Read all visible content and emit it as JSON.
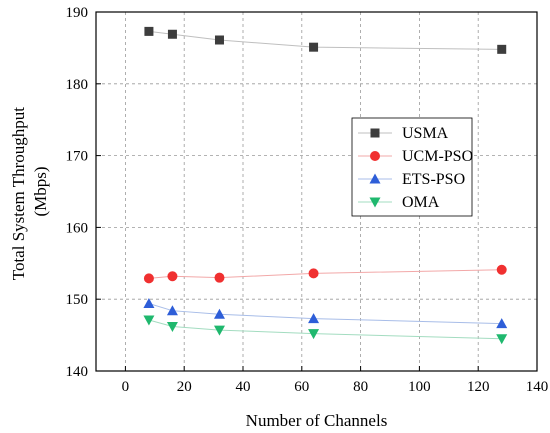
{
  "chart_data": {
    "type": "scatter",
    "xlabel": "Number of Channels",
    "ylabel_lines": [
      "Total System Throughput",
      "(Mbps)"
    ],
    "xlim": [
      -10,
      140
    ],
    "ylim": [
      140,
      190
    ],
    "xticks": [
      0,
      20,
      40,
      60,
      80,
      100,
      120,
      140
    ],
    "yticks": [
      140,
      150,
      160,
      170,
      180,
      190
    ],
    "grid": true,
    "legend_position": "right",
    "x": [
      8,
      16,
      32,
      64,
      128
    ],
    "series": [
      {
        "name": "USMA",
        "marker": "square",
        "color": "#3d3d3d",
        "line_color": "#bfbfbf",
        "values": [
          187.3,
          186.9,
          186.1,
          185.1,
          184.8
        ]
      },
      {
        "name": "UCM-PSO",
        "marker": "circle",
        "color": "#f03030",
        "line_color": "#f2a8a8",
        "values": [
          152.9,
          153.2,
          153.0,
          153.6,
          154.1
        ]
      },
      {
        "name": "ETS-PSO",
        "marker": "triangle-up",
        "color": "#2e5ed8",
        "line_color": "#a8bde8",
        "values": [
          149.4,
          148.4,
          147.9,
          147.3,
          146.6
        ]
      },
      {
        "name": "OMA",
        "marker": "triangle-down",
        "color": "#1fb86e",
        "line_color": "#a3dcc0",
        "values": [
          147.1,
          146.2,
          145.7,
          145.2,
          144.5
        ]
      }
    ]
  }
}
